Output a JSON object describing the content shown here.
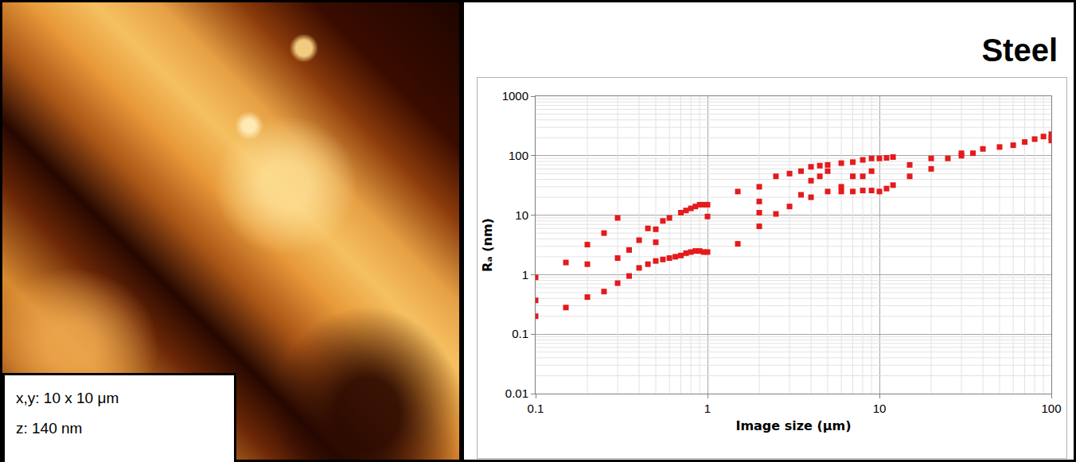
{
  "image_panel": {
    "labels": [
      "x,y: 10 x 10 μm",
      "z: 140 nm"
    ]
  },
  "chart_data": {
    "type": "scatter",
    "title": "Steel",
    "x_label": "Image size (μm)",
    "y_label": "Rₐ (nm)",
    "log": true,
    "grid": true,
    "marker": "square",
    "color": "#e41a1c",
    "xlim": [
      0.1,
      100
    ],
    "ylim": [
      0.01,
      1000
    ],
    "xticks": [
      0.1,
      1,
      10,
      100
    ],
    "yticks": [
      0.01,
      0.1,
      1,
      10,
      100,
      1000
    ],
    "x": [
      0.1,
      0.1,
      0.1,
      0.15,
      0.15,
      0.2,
      0.2,
      0.2,
      0.25,
      0.25,
      0.3,
      0.3,
      0.3,
      0.35,
      0.35,
      0.4,
      0.4,
      0.45,
      0.45,
      0.5,
      0.5,
      0.5,
      0.55,
      0.55,
      0.6,
      0.6,
      0.65,
      0.7,
      0.7,
      0.75,
      0.75,
      0.8,
      0.8,
      0.85,
      0.85,
      0.9,
      0.9,
      0.95,
      0.95,
      1,
      1,
      1,
      1.5,
      1.5,
      2,
      2,
      2,
      2,
      2.5,
      2.5,
      3,
      3,
      3.5,
      3.5,
      4,
      4,
      4,
      4.5,
      4.5,
      5,
      5,
      5,
      6,
      6,
      6,
      7,
      7,
      7,
      8,
      8,
      8,
      9,
      9,
      9,
      10,
      10,
      11,
      11,
      12,
      12,
      15,
      15,
      20,
      20,
      25,
      30,
      30,
      35,
      40,
      50,
      60,
      70,
      80,
      90,
      100,
      100,
      100
    ],
    "values": [
      0.9,
      0.37,
      0.2,
      1.6,
      0.28,
      3.2,
      1.5,
      0.42,
      5,
      0.52,
      9,
      1.9,
      0.72,
      2.6,
      0.95,
      3.8,
      1.3,
      6,
      1.5,
      5.8,
      3.5,
      1.7,
      8,
      1.8,
      9,
      1.9,
      2.0,
      11,
      2.1,
      12,
      2.3,
      13,
      2.4,
      14,
      2.5,
      15,
      2.5,
      15,
      2.4,
      15,
      9.5,
      2.4,
      25,
      3.3,
      30,
      17,
      11,
      6.5,
      45,
      10.5,
      50,
      14,
      55,
      22,
      65,
      38,
      20,
      68,
      45,
      70,
      55,
      25,
      75,
      30,
      25,
      78,
      45,
      25,
      85,
      45,
      26,
      90,
      55,
      26,
      90,
      25,
      92,
      28,
      95,
      32,
      70,
      45,
      90,
      60,
      90,
      100,
      110,
      110,
      130,
      140,
      150,
      170,
      190,
      210,
      230,
      200,
      180
    ]
  }
}
